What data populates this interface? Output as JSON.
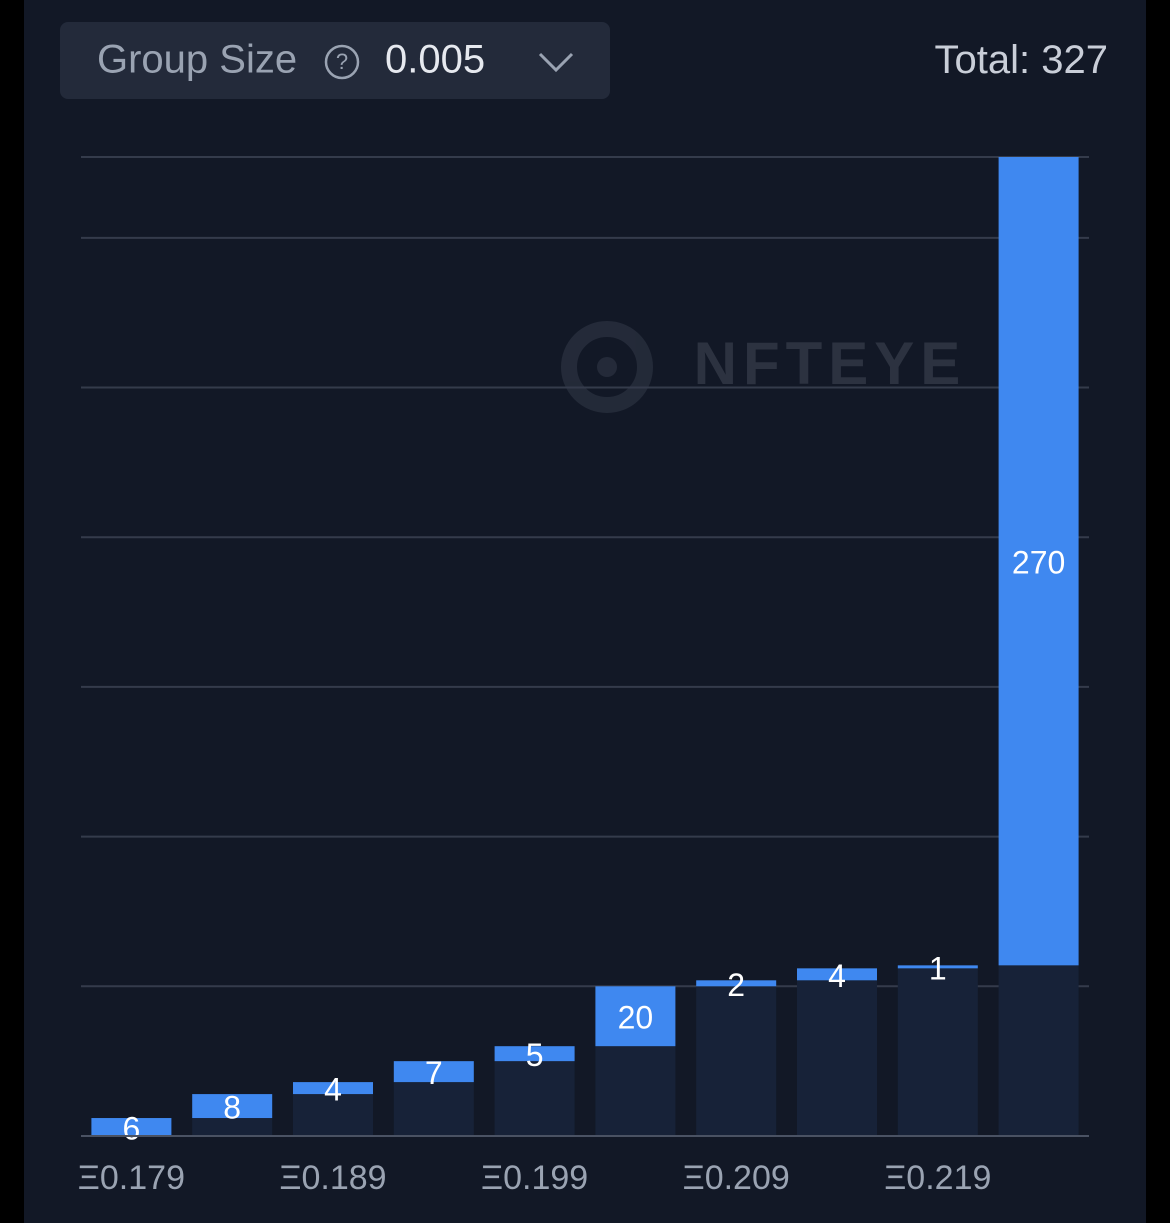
{
  "chart_data": {
    "type": "bar",
    "group_size_label": "Group Size",
    "group_size": "0.005",
    "total_label": "Total:",
    "total": 327,
    "watermark": "NFTEYE",
    "categories": [
      "Ξ0.179",
      null,
      "Ξ0.189",
      null,
      "Ξ0.199",
      null,
      "Ξ0.209",
      null,
      "Ξ0.219",
      null
    ],
    "values": [
      6,
      8,
      4,
      7,
      5,
      20,
      2,
      4,
      1,
      270
    ],
    "color": "#3f88f0",
    "base_color": "#172238",
    "stacked_cumulative": true,
    "ylim": [
      0,
      327
    ],
    "yticks": [
      0,
      50,
      100,
      150,
      200,
      250,
      300,
      327
    ],
    "grid": true
  }
}
